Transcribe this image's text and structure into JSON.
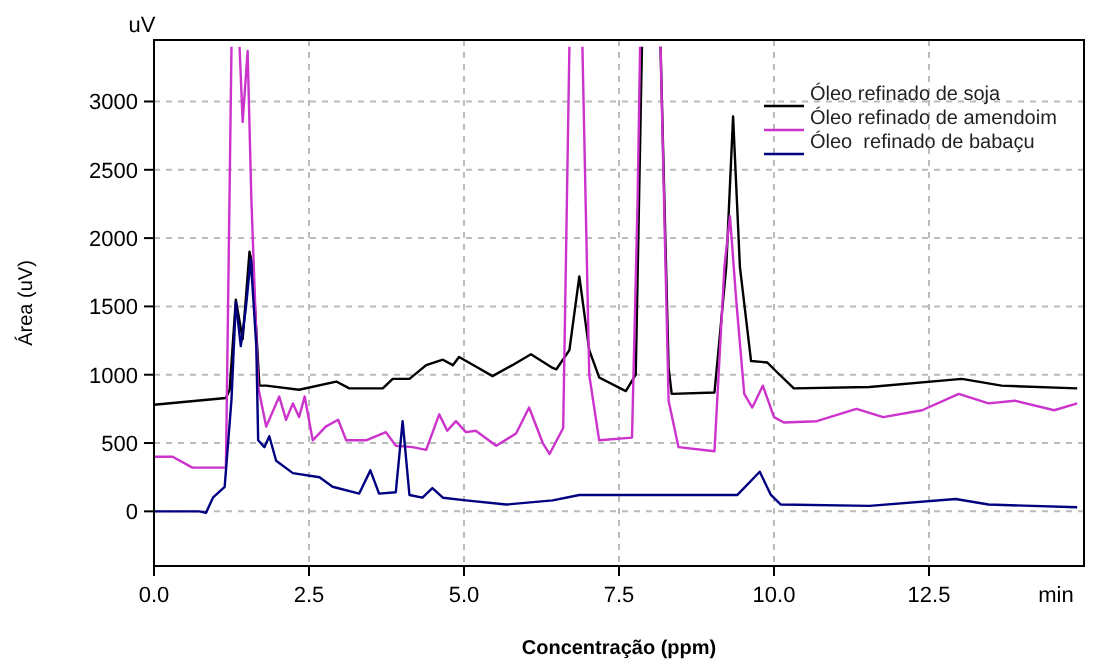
{
  "chart_data": {
    "type": "line",
    "xlabel": "Concentração (ppm)",
    "ylabel": "Área (uV)",
    "annotations": [
      "uV",
      "min"
    ],
    "xlim": [
      0,
      15
    ],
    "xticks": [
      {
        "value": 0,
        "label": "0.0"
      },
      {
        "value": 2.5,
        "label": "2.5"
      },
      {
        "value": 5,
        "label": "5.0"
      },
      {
        "value": 7.5,
        "label": "7.5"
      },
      {
        "value": 10,
        "label": "10.0"
      },
      {
        "value": 12.5,
        "label": "12.5"
      }
    ],
    "ylim": [
      -400,
      3450
    ],
    "yticks": [
      0,
      500,
      1000,
      1500,
      2000,
      2500,
      3000
    ],
    "grid": true,
    "legend": "top right",
    "line_style": "solid",
    "marker": "none",
    "series": [
      {
        "name": "Óleo refinado de soja",
        "color": "#000000",
        "x": [
          0,
          1.16,
          1.22,
          1.32,
          1.43,
          1.54,
          1.59,
          1.7,
          1.81,
          2.34,
          2.94,
          3.15,
          3.69,
          3.85,
          4.12,
          4.39,
          4.66,
          4.82,
          4.92,
          5.19,
          5.46,
          5.78,
          6.08,
          6.43,
          6.49,
          6.7,
          6.86,
          7.02,
          7.18,
          7.61,
          7.77,
          7.87,
          8.02,
          8.17,
          8.3,
          8.35,
          9.04,
          9.23,
          9.34,
          9.45,
          9.63,
          9.89,
          10.0,
          10.32,
          11.54,
          13.03,
          13.67,
          14.89
        ],
        "values": [
          780,
          830,
          890,
          1550,
          1260,
          1900,
          1800,
          920,
          920,
          890,
          950,
          900,
          900,
          970,
          970,
          1070,
          1110,
          1070,
          1130,
          1060,
          990,
          1070,
          1150,
          1050,
          1040,
          1180,
          1720,
          1180,
          980,
          880,
          1000,
          3400,
          null,
          3400,
          1050,
          860,
          870,
          1790,
          2890,
          1790,
          1100,
          1090,
          1040,
          900,
          910,
          970,
          920,
          900
        ]
      },
      {
        "name": "Óleo refinado de amendoim",
        "color": "#cc33cc",
        "x": [
          0,
          0.3,
          0.62,
          1.16,
          1.25,
          1.32,
          1.38,
          1.43,
          1.51,
          1.57,
          1.68,
          1.81,
          2.02,
          2.13,
          2.24,
          2.34,
          2.43,
          2.56,
          2.77,
          2.97,
          3.1,
          3.42,
          3.74,
          3.9,
          4.17,
          4.39,
          4.6,
          4.73,
          4.87,
          5.03,
          5.19,
          5.52,
          5.84,
          6.05,
          6.27,
          6.38,
          6.6,
          6.7,
          6.8,
          6.91,
          7.02,
          7.18,
          7.71,
          7.8,
          7.84,
          8.0,
          8.17,
          8.3,
          8.46,
          9.04,
          9.2,
          9.29,
          9.39,
          9.52,
          9.65,
          9.82,
          10.0,
          10.16,
          10.69,
          11.33,
          11.76,
          12.39,
          12.98,
          13.46,
          13.88,
          14.52,
          14.89
        ],
        "values": [
          400,
          400,
          320,
          320,
          3400,
          null,
          3400,
          2850,
          3370,
          2290,
          910,
          620,
          840,
          670,
          790,
          690,
          840,
          520,
          620,
          670,
          520,
          520,
          580,
          480,
          470,
          450,
          710,
          590,
          660,
          580,
          590,
          480,
          570,
          760,
          500,
          420,
          610,
          3400,
          null,
          3400,
          1000,
          520,
          540,
          2280,
          3400,
          null,
          3400,
          810,
          470,
          440,
          1790,
          2160,
          1550,
          860,
          760,
          920,
          690,
          650,
          660,
          750,
          690,
          740,
          860,
          790,
          810,
          740,
          790
        ]
      },
      {
        "name": "Óleo  refinado de babaçu",
        "color": "#000080",
        "x": [
          0,
          0.73,
          0.84,
          0.95,
          1.14,
          1.25,
          1.32,
          1.4,
          1.48,
          1.56,
          1.65,
          1.68,
          1.78,
          1.86,
          1.97,
          2.24,
          2.67,
          2.88,
          3.31,
          3.49,
          3.63,
          3.9,
          4.01,
          4.12,
          4.33,
          4.49,
          4.66,
          5.03,
          5.68,
          6.43,
          6.86,
          8.03,
          9.2,
          9.41,
          9.77,
          9.95,
          10.11,
          11.54,
          12.93,
          13.46,
          14.89
        ],
        "values": [
          0,
          0,
          -10,
          100,
          180,
          820,
          1530,
          1210,
          1480,
          1850,
          1210,
          520,
          470,
          550,
          370,
          280,
          250,
          180,
          130,
          300,
          130,
          140,
          660,
          120,
          100,
          170,
          100,
          80,
          50,
          80,
          120,
          120,
          120,
          120,
          290,
          120,
          50,
          40,
          90,
          50,
          30
        ]
      }
    ]
  }
}
